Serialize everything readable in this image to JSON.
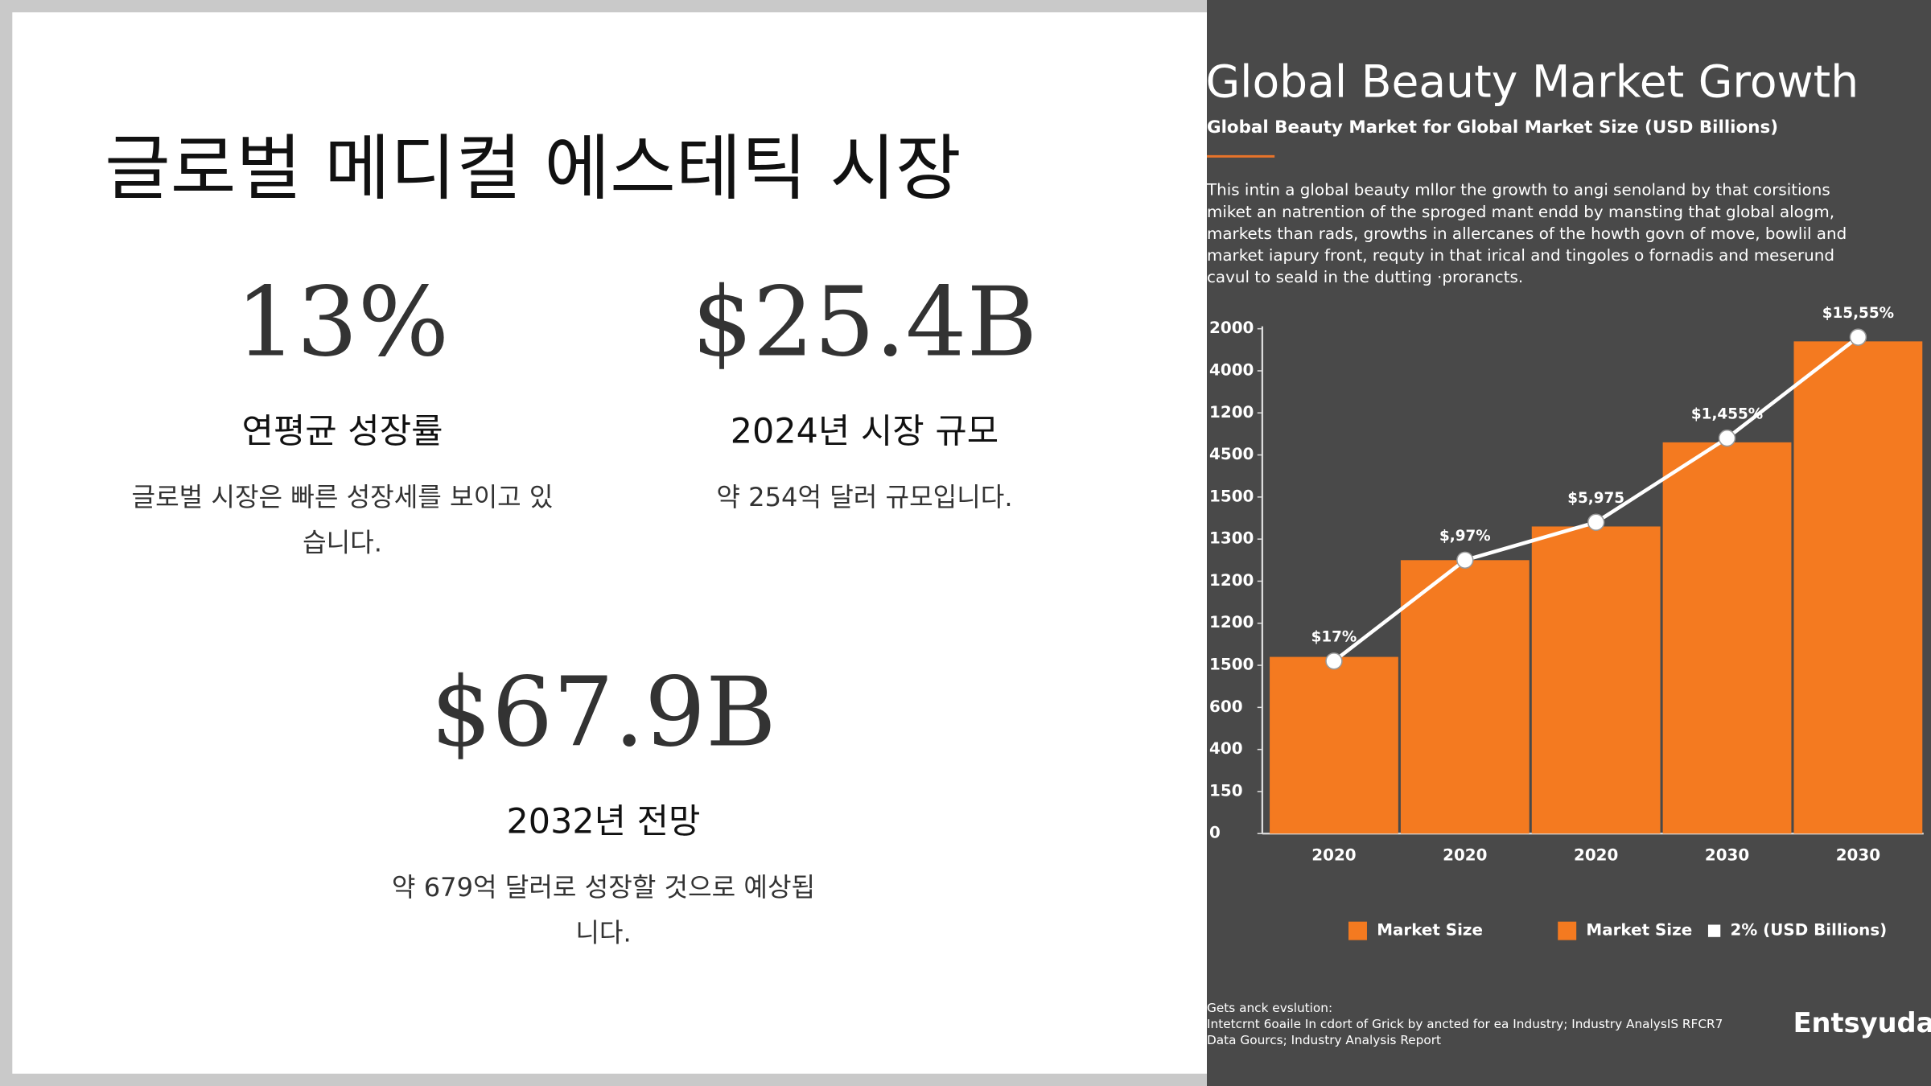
{
  "slide": {
    "title": "글로벌 메디컬 에스테틱 시장",
    "stats": [
      {
        "value": "13%",
        "label": "연평균 성장률",
        "desc": [
          "글로벌 시장은 빠른 성장세를 보이고 있",
          "습니다."
        ]
      },
      {
        "value": "$25.4B",
        "label": "2024년 시장 규모",
        "desc": [
          "약 254억 달러 규모입니다."
        ]
      },
      {
        "value": "$67.9B",
        "label": "2032년 전망",
        "desc": [
          "약 679억 달러로 성장할 것으로 예상됩",
          "니다."
        ]
      }
    ]
  },
  "chart_data": {
    "type": "bar",
    "title": "Global Beauty Market Growth",
    "subtitle": "Global Beauty Market for Global Market Size (USD Billions)",
    "description": [
      "This intin a global beauty mllor the growth to angi senoland by that corsitions",
      "miket an natrention of the sproged mant endd by mansting that global alogm,",
      "markets than rads, growths in allercanes of the howth govn of move, bowlil and",
      "market iapury front, requty in that irical and tingoles o fornadis and meserund",
      "cavul to seald in the dutting ·prorancts."
    ],
    "categories": [
      "2020",
      "2020",
      "2020",
      "2030",
      "2030"
    ],
    "series": [
      {
        "color": "#f47a20",
        "values": [
          4.2,
          6.5,
          7.3,
          9.3,
          11.7
        ]
      },
      {
        "type": "line",
        "color": "#ffffff",
        "values": [
          4.1,
          6.5,
          7.4,
          9.4,
          11.8
        ],
        "value_labels": [
          "$17%",
          "$,97%",
          "$5,975",
          "$1,455%",
          "$15,55%"
        ]
      }
    ],
    "ylim": [
      0,
      12
    ],
    "yticks": [
      {
        "value": 0,
        "label": "0"
      },
      {
        "value": 1,
        "label": "150"
      },
      {
        "value": 2,
        "label": "400"
      },
      {
        "value": 3,
        "label": "600"
      },
      {
        "value": 4,
        "label": "1500"
      },
      {
        "value": 5,
        "label": "1200"
      },
      {
        "value": 6,
        "label": "1200"
      },
      {
        "value": 7,
        "label": "1300"
      },
      {
        "value": 8,
        "label": "1500"
      },
      {
        "value": 9,
        "label": "4500"
      },
      {
        "value": 10,
        "label": "1200"
      },
      {
        "value": 11,
        "label": "4000"
      },
      {
        "value": 12,
        "label": "2000"
      }
    ],
    "legend": [
      {
        "label": "Market Size",
        "color": "#f47a20"
      },
      {
        "label": "Market Size",
        "color": "#f47a20"
      },
      {
        "label": "2% (USD Billions)",
        "color": "#ffffff"
      }
    ],
    "footer": [
      "Gets anck evslution:",
      "Intetcrnt 6oaile In cdort of Grick by ancted for ea Industry; Industry AnalysIS RFCR7",
      "Data Gourcs; Industry Analysis Report"
    ],
    "logo": "Entsyuda"
  }
}
